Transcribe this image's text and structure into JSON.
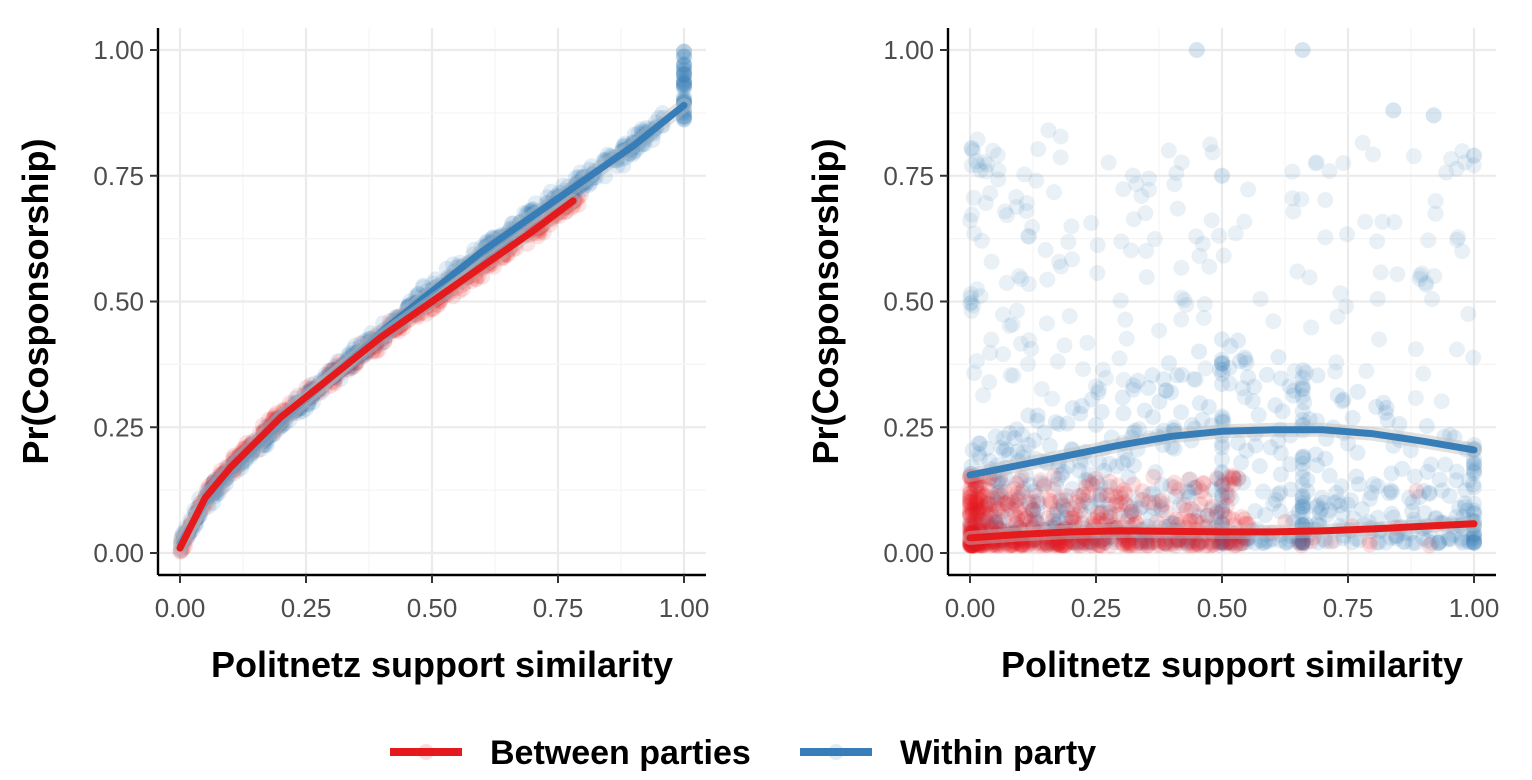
{
  "legend": {
    "items": [
      {
        "label": "Between parties",
        "color": "#e41a1c"
      },
      {
        "label": "Within party",
        "color": "#377eb8"
      }
    ],
    "position": "bottom"
  },
  "chart_data": [
    {
      "type": "scatter",
      "xlabel": "Politnetz support similarity",
      "ylabel": "Pr(Cosponsorship)",
      "xlim": [
        0,
        1
      ],
      "ylim": [
        0,
        1
      ],
      "xticks": [
        "0.00",
        "0.25",
        "0.50",
        "0.75",
        "1.00"
      ],
      "yticks": [
        "0.00",
        "0.25",
        "0.50",
        "0.75",
        "1.00"
      ],
      "grid": true,
      "series": [
        {
          "name": "Between parties",
          "color": "#e41a1c",
          "trend_x": [
            0.0,
            0.05,
            0.1,
            0.2,
            0.3,
            0.4,
            0.5,
            0.6,
            0.7,
            0.78
          ],
          "trend_y": [
            0.01,
            0.11,
            0.17,
            0.27,
            0.35,
            0.43,
            0.5,
            0.57,
            0.64,
            0.7
          ]
        },
        {
          "name": "Within party",
          "color": "#377eb8",
          "trend_x": [
            0.0,
            0.05,
            0.1,
            0.2,
            0.3,
            0.4,
            0.5,
            0.6,
            0.7,
            0.8,
            0.9,
            1.0
          ],
          "trend_y": [
            0.02,
            0.1,
            0.16,
            0.26,
            0.35,
            0.44,
            0.52,
            0.6,
            0.67,
            0.74,
            0.81,
            0.89
          ]
        }
      ]
    },
    {
      "type": "scatter",
      "xlabel": "Politnetz support similarity",
      "ylabel": "Pr(Cosponsorship)",
      "xlim": [
        0,
        1
      ],
      "ylim": [
        0,
        1
      ],
      "xticks": [
        "0.00",
        "0.25",
        "0.50",
        "0.75",
        "1.00"
      ],
      "yticks": [
        "0.00",
        "0.25",
        "0.50",
        "0.75",
        "1.00"
      ],
      "grid": true,
      "series": [
        {
          "name": "Between parties",
          "color": "#e41a1c",
          "trend_x": [
            0.0,
            0.1,
            0.2,
            0.3,
            0.4,
            0.5,
            0.6,
            0.7,
            0.8,
            0.9,
            1.0
          ],
          "trend_y": [
            0.03,
            0.037,
            0.042,
            0.044,
            0.043,
            0.042,
            0.042,
            0.044,
            0.048,
            0.053,
            0.058
          ]
        },
        {
          "name": "Within party",
          "color": "#377eb8",
          "trend_x": [
            0.0,
            0.1,
            0.2,
            0.3,
            0.4,
            0.5,
            0.6,
            0.7,
            0.8,
            0.9,
            1.0
          ],
          "trend_y": [
            0.155,
            0.175,
            0.195,
            0.215,
            0.232,
            0.242,
            0.245,
            0.245,
            0.237,
            0.222,
            0.205
          ]
        }
      ]
    }
  ]
}
